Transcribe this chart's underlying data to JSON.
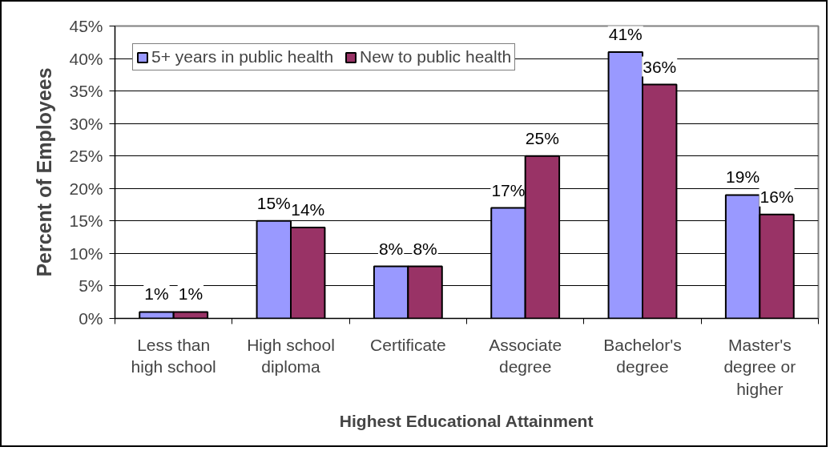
{
  "chart_data": {
    "type": "bar",
    "xlabel": "Highest Educational Attainment",
    "ylabel": "Percent of Employees",
    "categories": [
      "Less than\nhigh school",
      "High school\ndiploma",
      "Certificate",
      "Associate\ndegree",
      "Bachelor's\ndegree",
      "Master's\ndegree or\nhigher"
    ],
    "series": [
      {
        "name": "5+ years in public health",
        "color": "#9999ff",
        "values": [
          1,
          15,
          8,
          17,
          41,
          19
        ],
        "value_labels": [
          "1%",
          "15%",
          "8%",
          "17%",
          "41%",
          "19%"
        ]
      },
      {
        "name": "New to public health",
        "color": "#993366",
        "values": [
          1,
          14,
          8,
          25,
          36,
          16
        ],
        "value_labels": [
          "1%",
          "14%",
          "8%",
          "25%",
          "36%",
          "16%"
        ]
      }
    ],
    "ylim": [
      0,
      45
    ],
    "yticks": [
      {
        "value": 0,
        "label": "0%"
      },
      {
        "value": 5,
        "label": "5%"
      },
      {
        "value": 10,
        "label": "10%"
      },
      {
        "value": 15,
        "label": "15%"
      },
      {
        "value": 20,
        "label": "20%"
      },
      {
        "value": 25,
        "label": "25%"
      },
      {
        "value": 30,
        "label": "30%"
      },
      {
        "value": 35,
        "label": "35%"
      },
      {
        "value": 40,
        "label": "40%"
      },
      {
        "value": 45,
        "label": "45%"
      }
    ],
    "grid": "y",
    "legend": "top left"
  }
}
